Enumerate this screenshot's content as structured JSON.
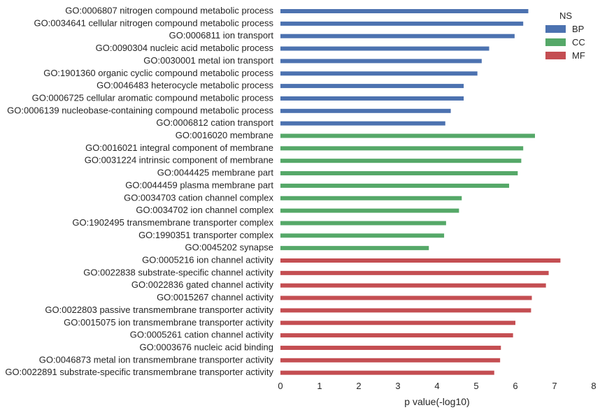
{
  "chart_data": {
    "type": "bar",
    "orientation": "horizontal",
    "xlabel": "p value(-log10)",
    "ylabel": "",
    "xlim": [
      0,
      8
    ],
    "xticks": [
      0,
      1,
      2,
      3,
      4,
      5,
      6,
      7,
      8
    ],
    "grid": false,
    "legend": {
      "title": "NS",
      "placement": "top-right",
      "entries": [
        {
          "name": "BP",
          "color": "#4c72b0"
        },
        {
          "name": "CC",
          "color": "#55a868"
        },
        {
          "name": "MF",
          "color": "#c44e52"
        }
      ]
    },
    "categories": [
      "GO:0006807 nitrogen compound metabolic process",
      "GO:0034641 cellular nitrogen compound metabolic process",
      "GO:0006811 ion transport",
      "GO:0090304 nucleic acid metabolic process",
      "GO:0030001 metal ion transport",
      "GO:1901360 organic cyclic compound metabolic process",
      "GO:0046483 heterocycle metabolic process",
      "GO:0006725 cellular aromatic compound metabolic process",
      "GO:0006139 nucleobase-containing compound metabolic process",
      "GO:0006812 cation transport",
      "GO:0016020 membrane",
      "GO:0016021 integral component of membrane",
      "GO:0031224 intrinsic component of membrane",
      "GO:0044425 membrane part",
      "GO:0044459 plasma membrane part",
      "GO:0034703 cation channel complex",
      "GO:0034702 ion channel complex",
      "GO:1902495 transmembrane transporter complex",
      "GO:1990351 transporter complex",
      "GO:0045202 synapse",
      "GO:0005216 ion channel activity",
      "GO:0022838 substrate-specific channel activity",
      "GO:0022836 gated channel activity",
      "GO:0015267 channel activity",
      "GO:0022803 passive transmembrane transporter activity",
      "GO:0015075 ion transmembrane transporter activity",
      "GO:0005261 cation channel activity",
      "GO:0003676 nucleic acid binding",
      "GO:0046873 metal ion transmembrane transporter activity",
      "GO:0022891 substrate-specific transmembrane transporter activity"
    ],
    "series": [
      {
        "name": "BP",
        "color": "#4c72b0",
        "values": [
          6.33,
          6.2,
          5.98,
          5.33,
          5.14,
          5.03,
          4.68,
          4.68,
          4.35,
          4.21,
          null,
          null,
          null,
          null,
          null,
          null,
          null,
          null,
          null,
          null,
          null,
          null,
          null,
          null,
          null,
          null,
          null,
          null,
          null,
          null
        ]
      },
      {
        "name": "CC",
        "color": "#55a868",
        "values": [
          null,
          null,
          null,
          null,
          null,
          null,
          null,
          null,
          null,
          null,
          6.5,
          6.2,
          6.15,
          6.06,
          5.84,
          4.63,
          4.56,
          4.23,
          4.18,
          3.79,
          null,
          null,
          null,
          null,
          null,
          null,
          null,
          null,
          null,
          null
        ]
      },
      {
        "name": "MF",
        "color": "#c44e52",
        "values": [
          null,
          null,
          null,
          null,
          null,
          null,
          null,
          null,
          null,
          null,
          null,
          null,
          null,
          null,
          null,
          null,
          null,
          null,
          null,
          null,
          7.15,
          6.85,
          6.78,
          6.42,
          6.4,
          6.0,
          5.94,
          5.63,
          5.61,
          5.46
        ]
      }
    ]
  }
}
